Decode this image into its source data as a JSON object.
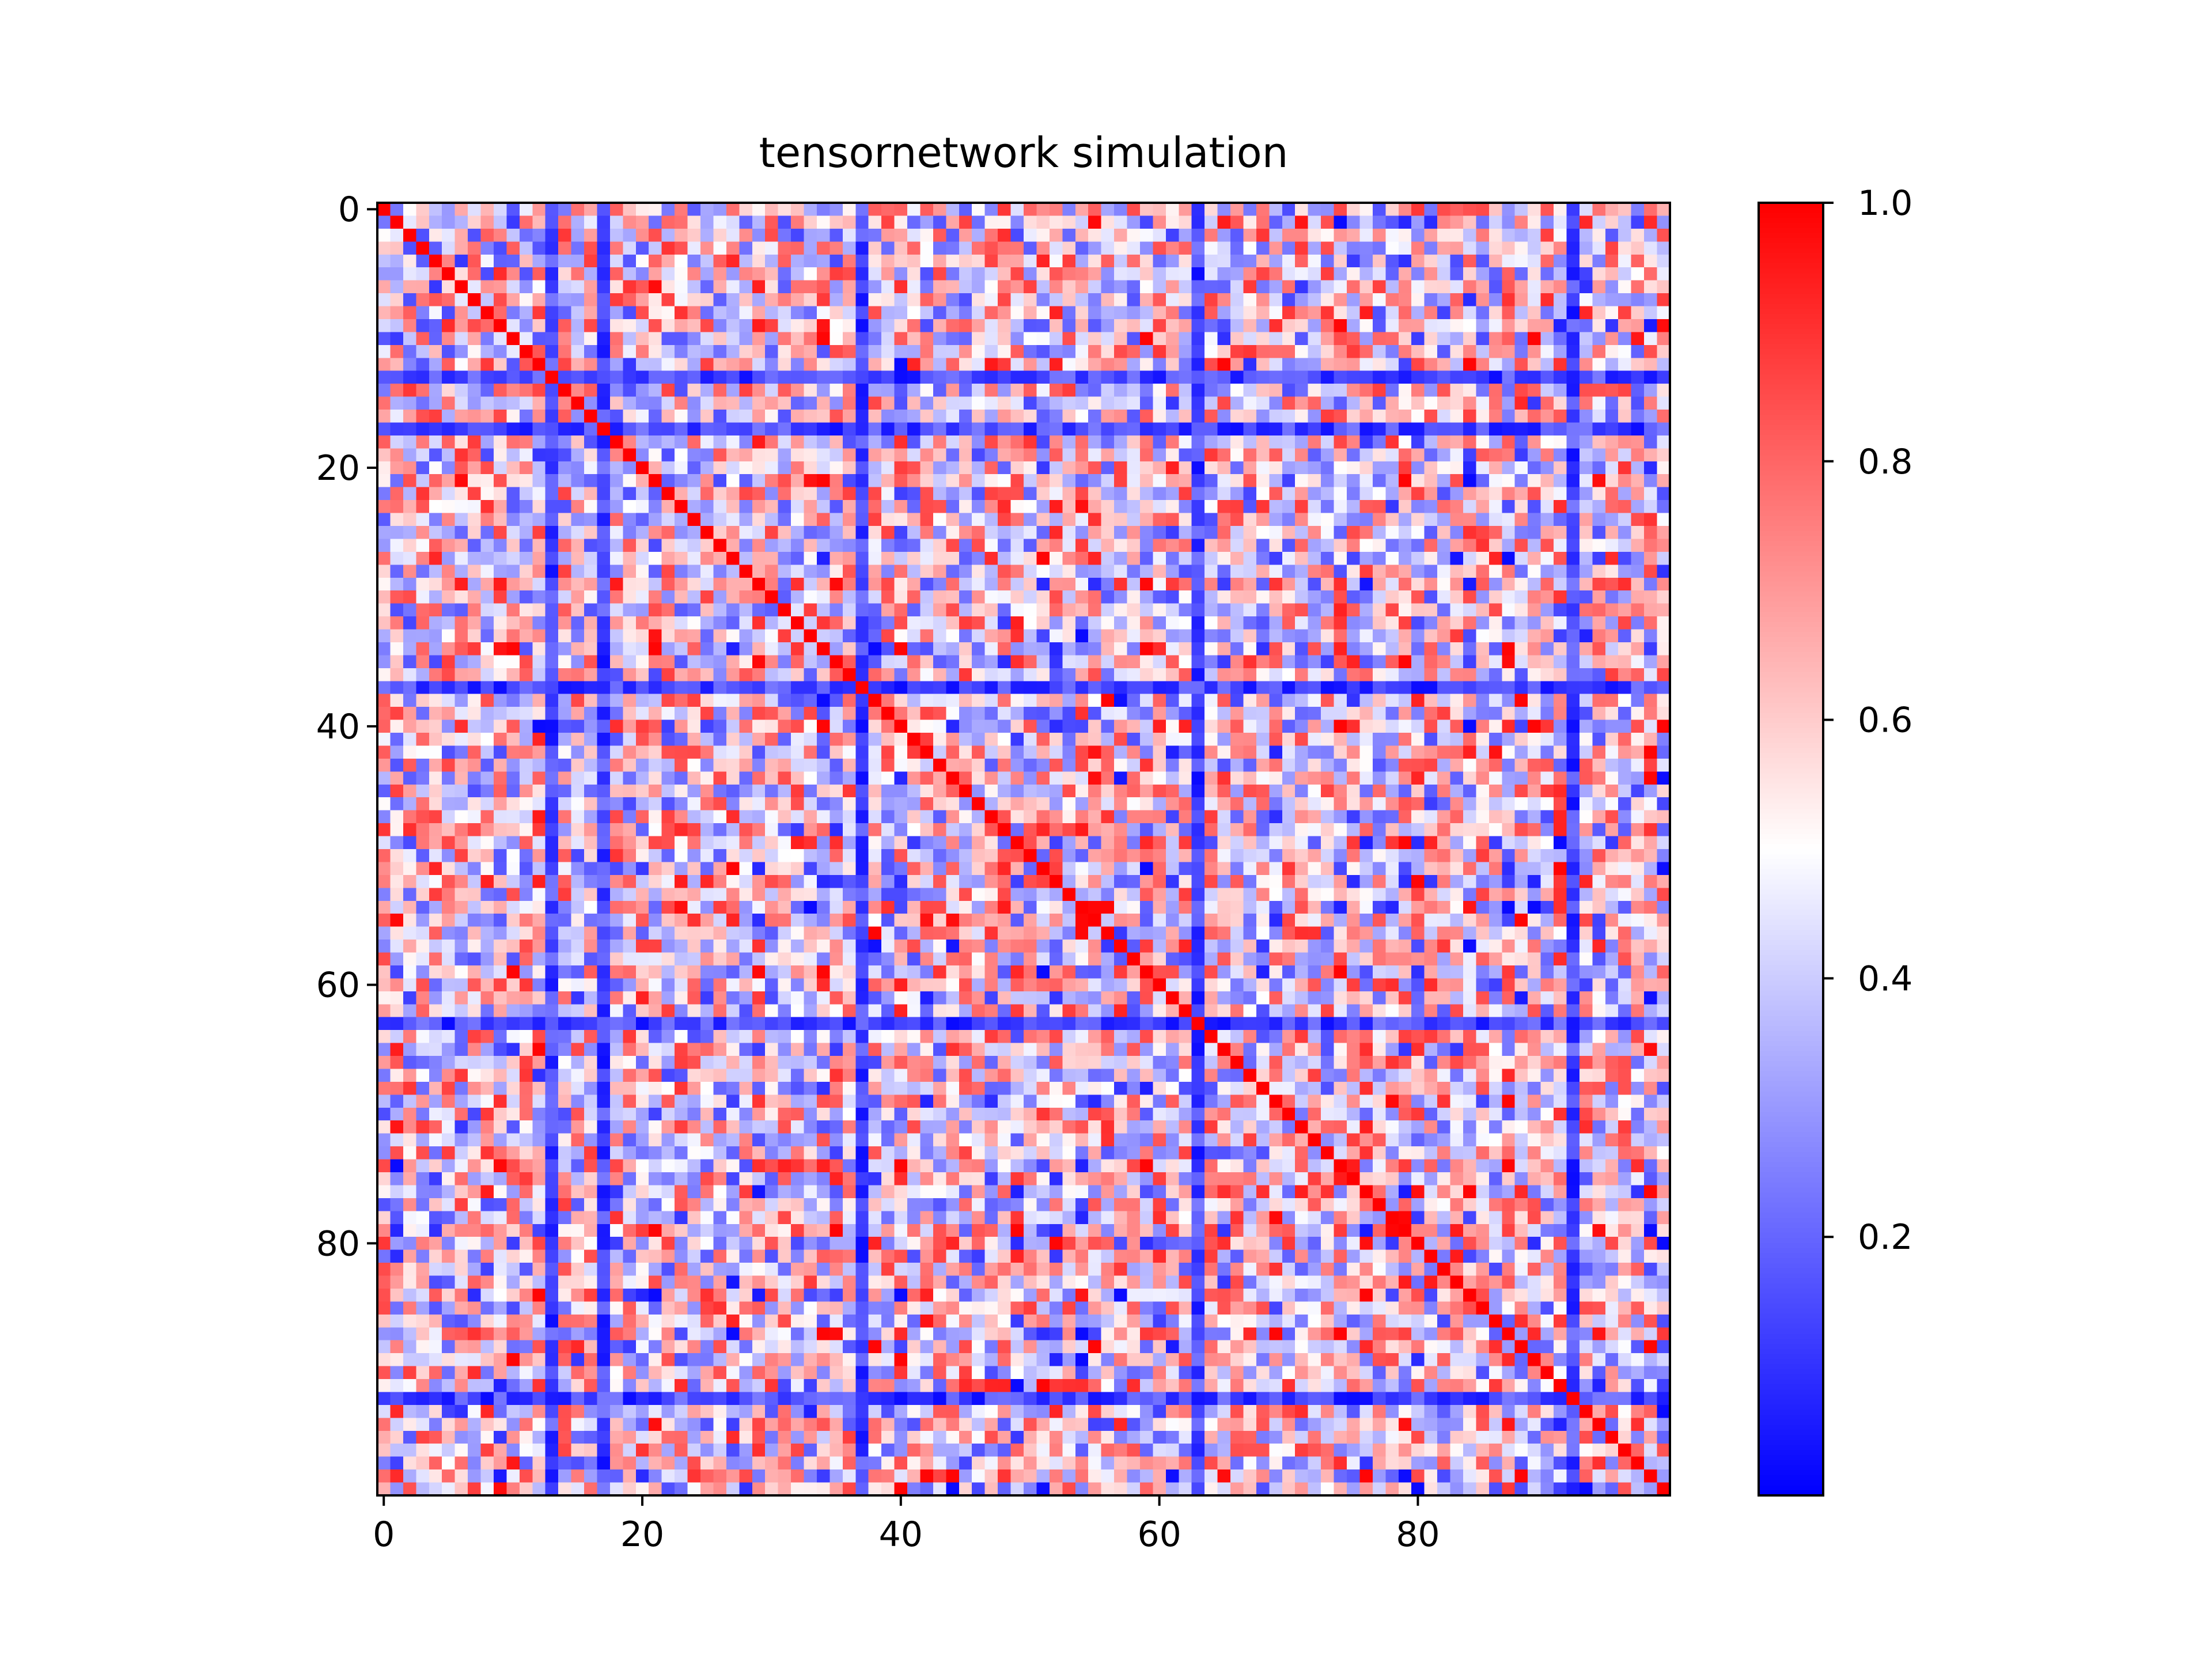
{
  "chart_data": {
    "type": "heatmap",
    "title": "tensornetwork simulation",
    "xlabel": "",
    "ylabel": "",
    "n_rows": 100,
    "n_cols": 100,
    "matrix_description": "symmetric correlation-like matrix with value 1.0 on the diagonal",
    "diagonal_value": 1.0,
    "xlim": [
      -0.5,
      99.5
    ],
    "ylim": [
      99.5,
      -0.5
    ],
    "x_ticks": [
      0,
      20,
      40,
      60,
      80
    ],
    "x_tick_labels": [
      "0",
      "20",
      "40",
      "60",
      "80"
    ],
    "y_ticks": [
      0,
      20,
      40,
      60,
      80
    ],
    "y_tick_labels": [
      "0",
      "20",
      "40",
      "60",
      "80"
    ],
    "colormap": "bwr",
    "colormap_stops": [
      "#0000ff",
      "#ffffff",
      "#ff0000"
    ],
    "value_range": [
      0.0,
      1.0
    ],
    "low_value_indices": [
      13,
      17,
      37,
      63,
      92
    ],
    "colorbar": {
      "ticks": [
        0.2,
        0.4,
        0.6,
        0.8,
        1.0
      ],
      "tick_labels": [
        "0.2",
        "0.4",
        "0.6",
        "0.8",
        "1.0"
      ]
    },
    "grid": false,
    "legend": "none"
  }
}
